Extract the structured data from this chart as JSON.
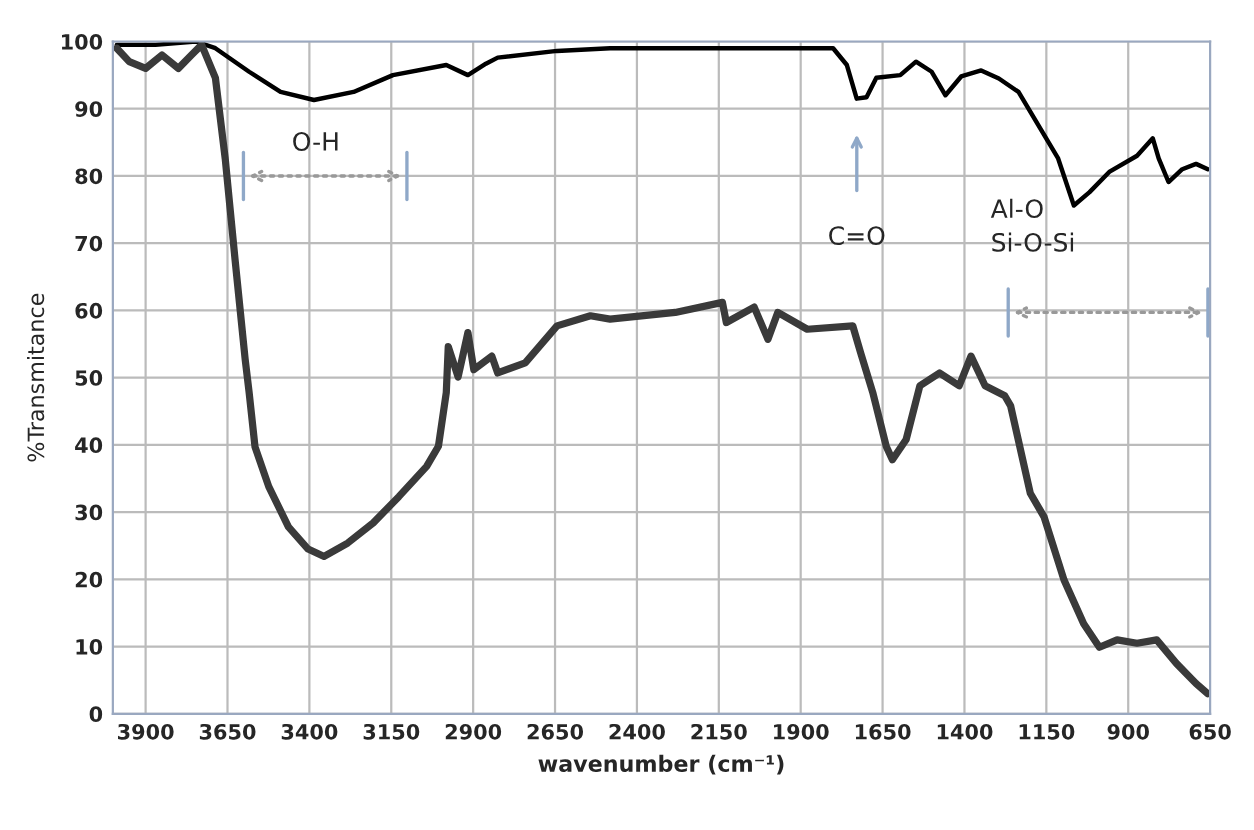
{
  "chart_data": {
    "type": "line",
    "xlabel": "wavenumber (cm⁻¹)",
    "ylabel": "%Transmitance",
    "xlim": [
      4000,
      650
    ],
    "xticks": [
      3900,
      3650,
      3400,
      3150,
      2900,
      2650,
      2400,
      2150,
      1900,
      1650,
      1400,
      1150,
      900,
      650
    ],
    "ylim": [
      0,
      100
    ],
    "yticks": [
      0,
      10,
      20,
      30,
      40,
      50,
      60,
      70,
      80,
      90,
      100
    ],
    "grid": true,
    "legend": false,
    "marker": "none",
    "line_style": "solid",
    "series": [
      {
        "color": "#000000",
        "x": [
          3988,
          3870,
          3747,
          3687,
          3584,
          3488,
          3386,
          3265,
          3145,
          2982,
          2916,
          2861,
          2825,
          2644,
          2482,
          1801,
          1759,
          1729,
          1699,
          1669,
          1596,
          1548,
          1500,
          1458,
          1410,
          1349,
          1295,
          1235,
          1175,
          1114,
          1066,
          1018,
          958,
          873,
          825,
          807,
          777,
          735,
          693,
          657
        ],
        "values": [
          99.5,
          99.5,
          100,
          99,
          95.5,
          92.5,
          91.3,
          92.5,
          95,
          96.5,
          95,
          96.7,
          97.6,
          98.6,
          99,
          99,
          96.5,
          91.5,
          91.7,
          94.6,
          95,
          97,
          95.5,
          92,
          94.8,
          95.7,
          94.5,
          92.5,
          87.6,
          82.6,
          75.6,
          77.6,
          80.6,
          83,
          85.6,
          82.6,
          79.1,
          81,
          81.8,
          81
        ]
      },
      {
        "color": "#3a3a3a",
        "x": [
          3988,
          3950,
          3900,
          3850,
          3800,
          3760,
          3729,
          3687,
          3657,
          3627,
          3596,
          3584,
          3566,
          3524,
          3464,
          3404,
          3355,
          3283,
          3205,
          3127,
          3042,
          3006,
          2982,
          2976,
          2946,
          2916,
          2898,
          2843,
          2825,
          2741,
          2644,
          2542,
          2482,
          2283,
          2139,
          2127,
          2042,
          2000,
          1970,
          1880,
          1741,
          1717,
          1680,
          1639,
          1620,
          1578,
          1536,
          1476,
          1416,
          1380,
          1337,
          1277,
          1259,
          1199,
          1157,
          1096,
          1036,
          988,
          934,
          873,
          813,
          753,
          693,
          657
        ],
        "values": [
          99,
          97,
          96,
          98,
          96,
          98,
          99.5,
          94.6,
          82.6,
          67.6,
          52.7,
          47.8,
          39.7,
          33.8,
          27.8,
          24.5,
          23.4,
          25.4,
          28.4,
          32.3,
          36.8,
          39.8,
          47.8,
          54.6,
          50.1,
          56.7,
          51.2,
          53.2,
          50.7,
          52.2,
          57.7,
          59.2,
          58.7,
          59.7,
          61.2,
          58.2,
          60.5,
          55.7,
          59.7,
          57.2,
          57.7,
          53.7,
          47.8,
          39.8,
          37.8,
          40.8,
          48.8,
          50.7,
          48.8,
          53.2,
          48.8,
          47.3,
          45.8,
          32.8,
          29.3,
          19.9,
          13.4,
          9.9,
          11,
          10.5,
          11,
          7.5,
          4.5,
          3
        ]
      }
    ],
    "annotations": [
      "O-H",
      "C=O",
      "Al-O\nSi-O-Si"
    ]
  }
}
